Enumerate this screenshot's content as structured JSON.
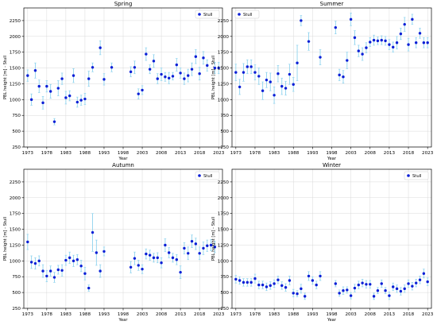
{
  "figure": {
    "x_label": "Year",
    "y_label": "PBL height [m] - Stull",
    "x_ticks": [
      1973,
      1978,
      1983,
      1988,
      1993,
      1998,
      2003,
      2008,
      2013,
      2018,
      2023
    ],
    "y_ticks": [
      250,
      500,
      750,
      1000,
      1250,
      1500,
      1750,
      2000,
      2250
    ],
    "legend_label": "Stull",
    "colors": {
      "marker": "#0a1ed6",
      "errorbar": "#8fd3ee",
      "grid": "#d9d9d9",
      "axis": "#000000"
    }
  },
  "chart_data": [
    {
      "type": "scatter",
      "title": "Spring",
      "xlabel": "Year",
      "ylabel": "PBL height [m] - Stull",
      "xlim": [
        1972,
        2024
      ],
      "ylim": [
        250,
        2450
      ],
      "grid": true,
      "legend": "top-right",
      "series": [
        {
          "name": "Stull",
          "x": [
            1973,
            1974,
            1975,
            1976,
            1977,
            1978,
            1979,
            1980,
            1981,
            1982,
            1983,
            1984,
            1985,
            1986,
            1987,
            1988,
            1989,
            1990,
            1992,
            1993,
            1995,
            2000,
            2001,
            2002,
            2003,
            2004,
            2005,
            2006,
            2007,
            2008,
            2009,
            2010,
            2011,
            2012,
            2013,
            2014,
            2015,
            2016,
            2017,
            2018,
            2019,
            2020,
            2022,
            2023
          ],
          "y": [
            1380,
            1000,
            1460,
            1210,
            950,
            1210,
            1130,
            650,
            1180,
            1330,
            1030,
            1060,
            1380,
            960,
            990,
            1010,
            1330,
            1510,
            1820,
            1320,
            1510,
            1440,
            1510,
            1090,
            1150,
            1720,
            1480,
            1610,
            1330,
            1400,
            1360,
            1340,
            1370,
            1550,
            1420,
            1330,
            1380,
            1480,
            1680,
            1410,
            1660,
            1540,
            1500,
            1500
          ],
          "err": [
            90,
            90,
            120,
            100,
            100,
            90,
            110,
            50,
            120,
            90,
            100,
            80,
            110,
            80,
            80,
            90,
            120,
            70,
            110,
            90,
            70,
            80,
            100,
            80,
            70,
            100,
            70,
            100,
            80,
            100,
            70,
            90,
            60,
            100,
            80,
            90,
            100,
            100,
            110,
            100,
            100,
            90,
            90,
            90
          ]
        }
      ]
    },
    {
      "type": "scatter",
      "title": "Summer",
      "xlabel": "Year",
      "ylabel": "PBL height [m] - Stull",
      "xlim": [
        1972,
        2024
      ],
      "ylim": [
        250,
        2450
      ],
      "grid": true,
      "legend": "top-left",
      "series": [
        {
          "name": "Stull",
          "x": [
            1973,
            1974,
            1975,
            1976,
            1977,
            1978,
            1979,
            1980,
            1981,
            1982,
            1983,
            1984,
            1985,
            1986,
            1987,
            1988,
            1989,
            1990,
            1992,
            1995,
            1999,
            2000,
            2001,
            2002,
            2003,
            2004,
            2005,
            2006,
            2007,
            2008,
            2009,
            2010,
            2011,
            2012,
            2013,
            2014,
            2015,
            2016,
            2017,
            2018,
            2019,
            2020,
            2021,
            2022,
            2023
          ],
          "y": [
            1430,
            1200,
            1430,
            1520,
            1520,
            1430,
            1370,
            1140,
            1310,
            1280,
            1070,
            1410,
            1210,
            1180,
            1400,
            1240,
            1580,
            2250,
            1920,
            1670,
            2140,
            1390,
            1360,
            1620,
            2270,
            1980,
            1770,
            1720,
            1820,
            1910,
            1940,
            1930,
            1940,
            1930,
            1870,
            1830,
            1900,
            2040,
            2190,
            1870,
            2270,
            1900,
            2050,
            1900,
            1900
          ],
          "err": [
            130,
            120,
            140,
            110,
            110,
            120,
            130,
            140,
            120,
            140,
            130,
            130,
            130,
            110,
            160,
            110,
            280,
            80,
            140,
            120,
            100,
            90,
            100,
            130,
            100,
            110,
            90,
            100,
            80,
            70,
            80,
            60,
            70,
            70,
            80,
            80,
            100,
            90,
            110,
            100,
            80,
            80,
            80,
            80,
            80
          ]
        }
      ]
    },
    {
      "type": "scatter",
      "title": "Autumn",
      "xlabel": "Year",
      "ylabel": "PBL height [m] - Stull",
      "xlim": [
        1972,
        2024
      ],
      "ylim": [
        250,
        2450
      ],
      "grid": true,
      "legend": "top-right",
      "series": [
        {
          "name": "Stull",
          "x": [
            1973,
            1974,
            1975,
            1976,
            1977,
            1978,
            1979,
            1980,
            1981,
            1982,
            1983,
            1984,
            1985,
            1986,
            1987,
            1988,
            1989,
            1990,
            1991,
            1992,
            1993,
            2000,
            2001,
            2002,
            2003,
            2004,
            2005,
            2006,
            2007,
            2008,
            2009,
            2010,
            2011,
            2012,
            2013,
            2014,
            2015,
            2016,
            2017,
            2018,
            2019,
            2020,
            2021,
            2022
          ],
          "y": [
            1300,
            980,
            960,
            1000,
            840,
            760,
            840,
            740,
            860,
            850,
            1010,
            1050,
            1000,
            1020,
            920,
            800,
            570,
            1450,
            1130,
            840,
            1150,
            900,
            1040,
            930,
            870,
            1110,
            1090,
            1050,
            1050,
            970,
            1250,
            1130,
            1050,
            1020,
            820,
            1200,
            1120,
            1310,
            1270,
            1120,
            1200,
            1240,
            1250,
            1220
          ],
          "err": [
            120,
            100,
            90,
            80,
            100,
            90,
            80,
            80,
            70,
            90,
            80,
            90,
            90,
            80,
            90,
            100,
            50,
            300,
            200,
            100,
            70,
            90,
            100,
            80,
            70,
            80,
            80,
            70,
            80,
            80,
            100,
            80,
            70,
            80,
            100,
            90,
            100,
            100,
            90,
            100,
            100,
            90,
            90,
            90
          ]
        }
      ]
    },
    {
      "type": "scatter",
      "title": "Winter",
      "xlabel": "Year",
      "ylabel": "PBL height [m] - Stull",
      "xlim": [
        1972,
        2024
      ],
      "ylim": [
        250,
        2450
      ],
      "grid": true,
      "legend": "top-right",
      "series": [
        {
          "name": "Stull",
          "x": [
            1973,
            1974,
            1975,
            1976,
            1977,
            1978,
            1979,
            1980,
            1981,
            1982,
            1983,
            1984,
            1985,
            1986,
            1987,
            1988,
            1989,
            1990,
            1991,
            1992,
            1993,
            1994,
            1995,
            1999,
            2000,
            2001,
            2002,
            2003,
            2004,
            2005,
            2006,
            2007,
            2008,
            2009,
            2010,
            2011,
            2012,
            2013,
            2014,
            2015,
            2016,
            2017,
            2018,
            2019,
            2020,
            2021,
            2022,
            2023
          ],
          "y": [
            710,
            690,
            660,
            660,
            660,
            720,
            620,
            620,
            590,
            610,
            640,
            700,
            610,
            580,
            690,
            490,
            480,
            560,
            440,
            760,
            690,
            620,
            760,
            640,
            490,
            530,
            540,
            450,
            570,
            620,
            650,
            630,
            630,
            440,
            530,
            640,
            530,
            450,
            590,
            560,
            520,
            560,
            640,
            600,
            650,
            700,
            800,
            670
          ],
          "err": [
            60,
            60,
            60,
            60,
            60,
            70,
            60,
            60,
            60,
            60,
            60,
            60,
            60,
            60,
            70,
            60,
            50,
            70,
            50,
            70,
            60,
            60,
            70,
            50,
            50,
            60,
            50,
            50,
            60,
            60,
            60,
            60,
            60,
            50,
            50,
            60,
            50,
            60,
            60,
            60,
            60,
            60,
            60,
            60,
            60,
            60,
            70,
            60
          ]
        }
      ]
    }
  ]
}
